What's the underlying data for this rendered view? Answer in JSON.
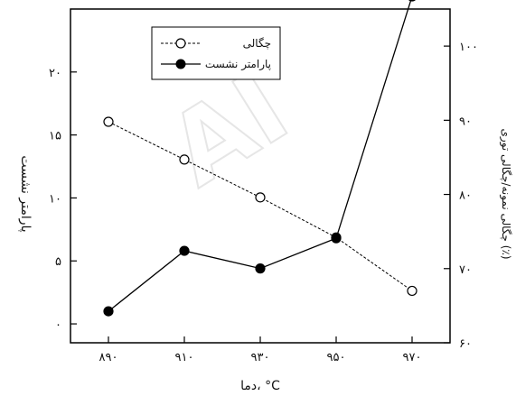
{
  "chart_data": {
    "type": "line",
    "title": "",
    "xlabel": "دما، °C",
    "ylabel_left": "پارامتر نشست",
    "ylabel_right": "چگالی نمونه/چگالی توری (٪)",
    "categories": [
      "۸۹۰",
      "۹۱۰",
      "۹۳۰",
      "۹۵۰",
      "۹۷۰"
    ],
    "x": [
      890,
      910,
      930,
      950,
      970
    ],
    "xlim": [
      880,
      980
    ],
    "y_left_ticks": [
      "۰",
      "۵",
      "۱۰",
      "۱۵",
      "۲۰"
    ],
    "y_left_range": [
      -1.5,
      25
    ],
    "y_right_ticks": [
      "۶۰",
      "۷۰",
      "۸۰",
      "۹۰",
      "۱۰۰"
    ],
    "y_right_range": [
      60,
      105
    ],
    "grid": false,
    "legend_placement": "top-center",
    "series": [
      {
        "name": "چگالی",
        "axis": "right",
        "marker": "open-circle",
        "line": "dashed",
        "values": [
          89.8,
          84.7,
          79.6,
          74.2,
          67.0
        ]
      },
      {
        "name": "پارامتر نشست",
        "axis": "left",
        "marker": "filled-circle",
        "line": "solid",
        "values": [
          1.0,
          5.8,
          4.4,
          6.8,
          26.0
        ]
      }
    ]
  },
  "watermark": "AI"
}
